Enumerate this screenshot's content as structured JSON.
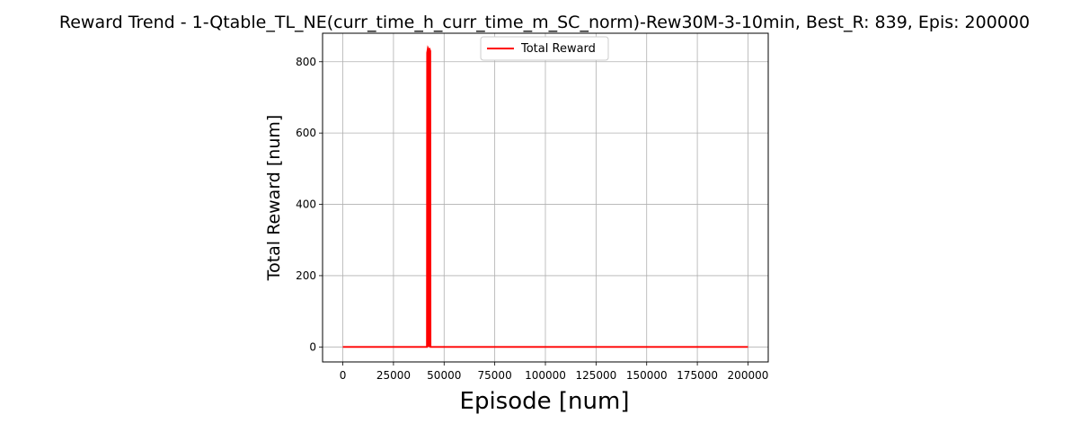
{
  "chart_data": {
    "type": "line",
    "title": "Reward Trend - 1-Qtable_TL_NE(curr_time_h_curr_time_m_SC_norm)-Rew30M-3-10min, Best_R: 839, Epis: 200000",
    "xlabel": "Episode [num]",
    "ylabel": "Total Reward [num]",
    "xlim": [
      -10000,
      210000
    ],
    "ylim": [
      -42,
      880
    ],
    "xticks": [
      0,
      25000,
      50000,
      75000,
      100000,
      125000,
      150000,
      175000,
      200000
    ],
    "xtick_labels": [
      "0",
      "25000",
      "50000",
      "75000",
      "100000",
      "125000",
      "150000",
      "175000",
      "200000"
    ],
    "yticks": [
      0,
      200,
      400,
      600,
      800
    ],
    "ytick_labels": [
      "0",
      "200",
      "400",
      "600",
      "800"
    ],
    "grid": true,
    "legend_position": "upper center",
    "series": [
      {
        "name": "Total Reward",
        "color": "#ff0000",
        "x": [
          0,
          41500,
          41600,
          42000,
          42400,
          42800,
          43200,
          43300,
          200000
        ],
        "y": [
          0,
          0,
          825,
          839,
          834,
          836,
          830,
          0,
          0
        ]
      }
    ]
  }
}
